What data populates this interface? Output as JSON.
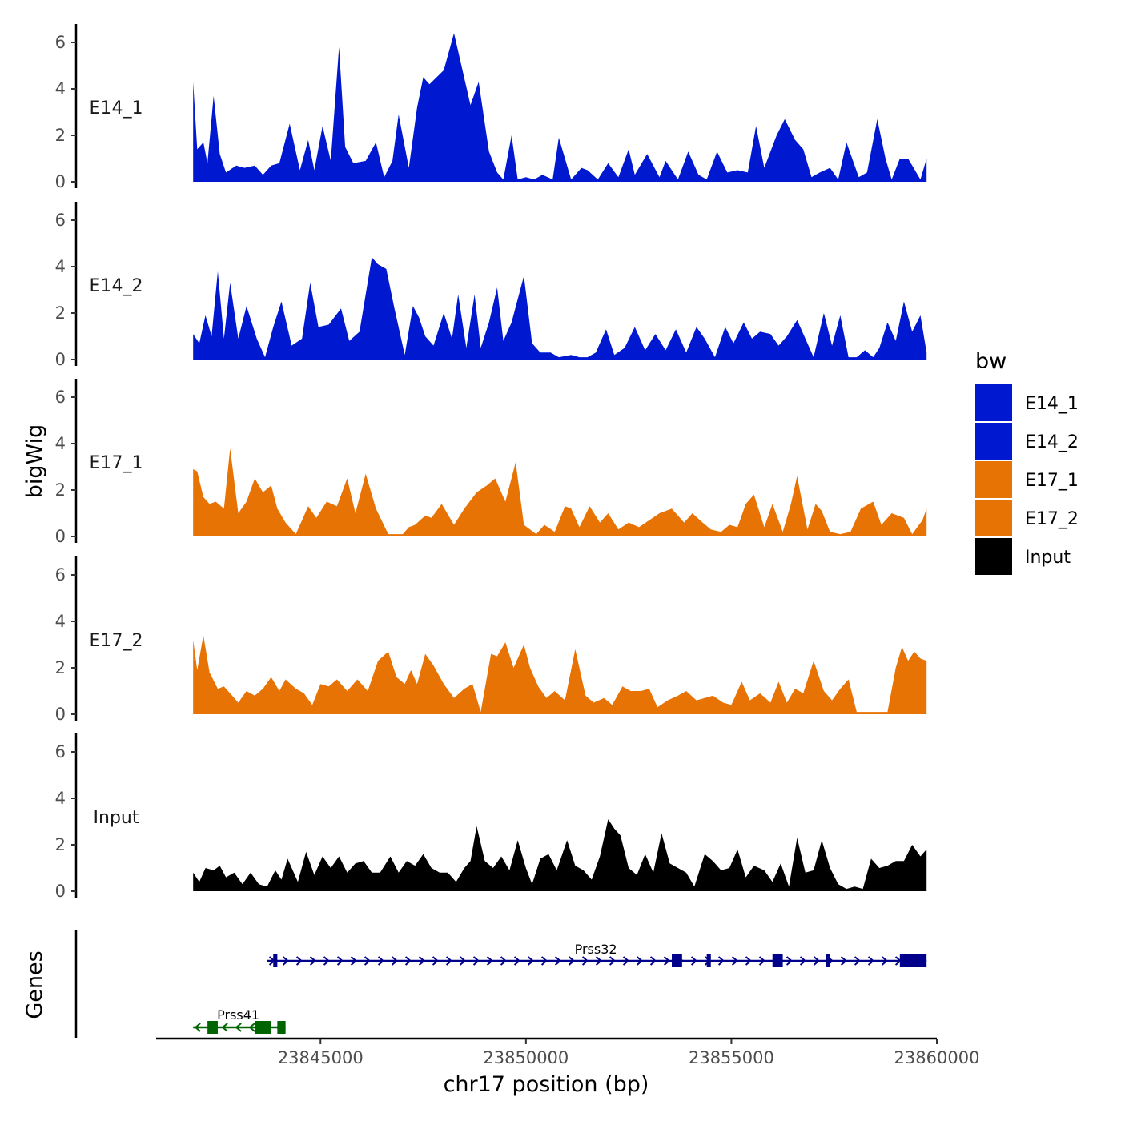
{
  "chart_data": {
    "type": "area",
    "chromosome": "chr17",
    "xlabel": "chr17 position (bp)",
    "ylabel": "bigWig",
    "genes_label": "Genes",
    "xlim": [
      23841000,
      23860000
    ],
    "ylim": [
      0,
      6.6
    ],
    "x_ticks": [
      23845000,
      23850000,
      23855000,
      23860000
    ],
    "x_tick_labels": [
      "23845000",
      "23850000",
      "23855000",
      "23860000"
    ],
    "y_ticks": [
      0,
      2,
      4,
      6
    ],
    "y_tick_labels": [
      "0",
      "2",
      "4",
      "6"
    ],
    "legend": {
      "title": "bw",
      "entries": [
        {
          "label": "E14_1",
          "color": "#0019D0"
        },
        {
          "label": "E14_2",
          "color": "#0019D0"
        },
        {
          "label": "E17_1",
          "color": "#E87305"
        },
        {
          "label": "E17_2",
          "color": "#E87305"
        },
        {
          "label": "Input",
          "color": "#000000"
        }
      ]
    },
    "series": [
      {
        "name": "E14_1",
        "color": "#0019D0",
        "x": [
          23841900,
          23842000,
          23842150,
          23842250,
          23842400,
          23842550,
          23842700,
          23842950,
          23843150,
          23843400,
          23843600,
          23843800,
          23844000,
          23844250,
          23844500,
          23844700,
          23844850,
          23845050,
          23845250,
          23845450,
          23845600,
          23845800,
          23846100,
          23846350,
          23846550,
          23846750,
          23846900,
          23847150,
          23847350,
          23847500,
          23847650,
          23848000,
          23848250,
          23848650,
          23848850,
          23849100,
          23849300,
          23849450,
          23849650,
          23849800,
          23850000,
          23850200,
          23850400,
          23850650,
          23850800,
          23851100,
          23851350,
          23851500,
          23851750,
          23852000,
          23852250,
          23852500,
          23852650,
          23852950,
          23853250,
          23853400,
          23853700,
          23853950,
          23854200,
          23854400,
          23854650,
          23854900,
          23855150,
          23855400,
          23855600,
          23855800,
          23856100,
          23856300,
          23856550,
          23856750,
          23856950,
          23857150,
          23857400,
          23857600,
          23857800,
          23858100,
          23858300,
          23858550,
          23858750,
          23858900,
          23859100,
          23859300,
          23859600,
          23859750
        ],
        "values": [
          4.3,
          1.4,
          1.7,
          0.8,
          3.7,
          1.2,
          0.4,
          0.7,
          0.6,
          0.7,
          0.3,
          0.7,
          0.8,
          2.5,
          0.5,
          1.8,
          0.5,
          2.4,
          0.9,
          5.8,
          1.5,
          0.8,
          0.9,
          1.7,
          0.2,
          0.9,
          2.9,
          0.6,
          3.2,
          4.5,
          4.2,
          4.8,
          6.4,
          3.3,
          4.3,
          1.3,
          0.4,
          0.1,
          2.0,
          0.1,
          0.2,
          0.1,
          0.3,
          0.1,
          1.9,
          0.1,
          0.6,
          0.5,
          0.1,
          0.8,
          0.2,
          1.4,
          0.3,
          1.2,
          0.2,
          0.9,
          0.1,
          1.3,
          0.3,
          0.1,
          1.3,
          0.4,
          0.5,
          0.4,
          2.4,
          0.6,
          2.0,
          2.7,
          1.8,
          1.4,
          0.2,
          0.4,
          0.6,
          0.1,
          1.7,
          0.2,
          0.4,
          2.7,
          1.0,
          0.1,
          1.0,
          1.0,
          0.1,
          1.0
        ]
      },
      {
        "name": "E14_2",
        "color": "#0019D0",
        "x": [
          23841900,
          23842050,
          23842200,
          23842350,
          23842500,
          23842650,
          23842800,
          23843000,
          23843200,
          23843450,
          23843650,
          23843850,
          23844050,
          23844300,
          23844550,
          23844750,
          23844950,
          23845200,
          23845500,
          23845700,
          23845950,
          23846100,
          23846250,
          23846400,
          23846600,
          23846800,
          23847050,
          23847250,
          23847400,
          23847550,
          23847750,
          23848000,
          23848200,
          23848350,
          23848550,
          23848750,
          23848900,
          23849100,
          23849300,
          23849450,
          23849650,
          23849950,
          23850150,
          23850350,
          23850600,
          23850800,
          23851100,
          23851300,
          23851500,
          23851700,
          23851950,
          23852150,
          23852400,
          23852650,
          23852900,
          23853150,
          23853400,
          23853650,
          23853900,
          23854150,
          23854350,
          23854600,
          23854850,
          23855050,
          23855300,
          23855500,
          23855700,
          23855950,
          23856150,
          23856350,
          23856600,
          23856800,
          23857000,
          23857250,
          23857450,
          23857650,
          23857850,
          23858050,
          23858250,
          23858450,
          23858600,
          23858800,
          23859000,
          23859200,
          23859400,
          23859600,
          23859750
        ],
        "values": [
          1.1,
          0.7,
          1.9,
          1.0,
          3.8,
          0.9,
          3.3,
          0.9,
          2.3,
          0.9,
          0.1,
          1.4,
          2.5,
          0.6,
          0.9,
          3.3,
          1.4,
          1.5,
          2.2,
          0.8,
          1.2,
          2.8,
          4.4,
          4.1,
          3.9,
          2.2,
          0.2,
          2.3,
          1.8,
          1.0,
          0.6,
          2.0,
          0.9,
          2.8,
          0.5,
          2.8,
          0.5,
          1.6,
          3.1,
          0.8,
          1.6,
          3.6,
          0.7,
          0.3,
          0.3,
          0.1,
          0.2,
          0.1,
          0.1,
          0.3,
          1.3,
          0.2,
          0.5,
          1.4,
          0.4,
          1.1,
          0.4,
          1.3,
          0.3,
          1.4,
          0.9,
          0.1,
          1.4,
          0.7,
          1.6,
          0.9,
          1.2,
          1.1,
          0.6,
          1.0,
          1.7,
          0.9,
          0.1,
          2.0,
          0.6,
          1.9,
          0.1,
          0.1,
          0.4,
          0.1,
          0.5,
          1.6,
          0.8,
          2.5,
          1.2,
          1.9,
          0.3
        ]
      },
      {
        "name": "E17_1",
        "color": "#E87305",
        "x": [
          23841900,
          23842000,
          23842150,
          23842300,
          23842450,
          23842650,
          23842800,
          23843000,
          23843200,
          23843400,
          23843600,
          23843800,
          23843950,
          23844150,
          23844400,
          23844700,
          23844900,
          23845150,
          23845400,
          23845650,
          23845850,
          23846100,
          23846350,
          23846650,
          23846850,
          23847000,
          23847150,
          23847300,
          23847550,
          23847700,
          23847950,
          23848250,
          23848500,
          23848800,
          23849050,
          23849250,
          23849500,
          23849750,
          23849950,
          23850250,
          23850450,
          23850700,
          23850950,
          23851100,
          23851300,
          23851550,
          23851800,
          23852000,
          23852250,
          23852500,
          23852750,
          23853000,
          23853250,
          23853550,
          23853850,
          23854050,
          23854300,
          23854500,
          23854750,
          23854950,
          23855150,
          23855350,
          23855550,
          23855800,
          23856000,
          23856250,
          23856450,
          23856600,
          23856850,
          23857050,
          23857200,
          23857400,
          23857650,
          23857900,
          23858150,
          23858450,
          23858650,
          23858900,
          23859200,
          23859400,
          23859650,
          23859750
        ],
        "values": [
          2.9,
          2.8,
          1.7,
          1.4,
          1.5,
          1.2,
          3.8,
          1.0,
          1.5,
          2.5,
          1.9,
          2.2,
          1.2,
          0.6,
          0.1,
          1.3,
          0.8,
          1.5,
          1.3,
          2.5,
          1.0,
          2.7,
          1.2,
          0.1,
          0.1,
          0.1,
          0.4,
          0.5,
          0.9,
          0.8,
          1.4,
          0.5,
          1.2,
          1.9,
          2.2,
          2.5,
          1.5,
          3.2,
          0.5,
          0.1,
          0.5,
          0.2,
          1.3,
          1.2,
          0.4,
          1.3,
          0.6,
          1.0,
          0.3,
          0.6,
          0.4,
          0.7,
          1.0,
          1.2,
          0.6,
          1.0,
          0.6,
          0.3,
          0.2,
          0.5,
          0.4,
          1.4,
          1.8,
          0.4,
          1.4,
          0.2,
          1.4,
          2.6,
          0.3,
          1.4,
          1.1,
          0.2,
          0.1,
          0.2,
          1.2,
          1.5,
          0.5,
          1.0,
          0.8,
          0.1,
          0.7,
          1.2
        ]
      },
      {
        "name": "E17_2",
        "color": "#E87305",
        "x": [
          23841900,
          23842000,
          23842150,
          23842300,
          23842500,
          23842650,
          23842800,
          23843000,
          23843200,
          23843400,
          23843600,
          23843800,
          23844000,
          23844150,
          23844400,
          23844600,
          23844800,
          23845000,
          23845200,
          23845400,
          23845650,
          23845900,
          23846150,
          23846400,
          23846650,
          23846850,
          23847050,
          23847200,
          23847350,
          23847550,
          23847750,
          23848000,
          23848250,
          23848500,
          23848700,
          23848900,
          23849150,
          23849300,
          23849500,
          23849700,
          23849950,
          23850100,
          23850300,
          23850500,
          23850700,
          23850950,
          23851200,
          23851450,
          23851650,
          23851900,
          23852100,
          23852350,
          23852550,
          23852800,
          23853000,
          23853200,
          23853450,
          23853700,
          23853900,
          23854150,
          23854350,
          23854550,
          23854800,
          23855000,
          23855250,
          23855450,
          23855700,
          23855950,
          23856150,
          23856350,
          23856550,
          23856750,
          23857000,
          23857250,
          23857450,
          23857650,
          23857850,
          23858050,
          23858350,
          23858600,
          23858800,
          23859000,
          23859150,
          23859300,
          23859450,
          23859600,
          23859750
        ],
        "values": [
          3.2,
          1.9,
          3.4,
          1.8,
          1.1,
          1.2,
          0.9,
          0.5,
          1.0,
          0.8,
          1.1,
          1.6,
          1.0,
          1.5,
          1.1,
          0.9,
          0.4,
          1.3,
          1.2,
          1.5,
          1.0,
          1.5,
          1.0,
          2.3,
          2.7,
          1.6,
          1.3,
          1.9,
          1.3,
          2.6,
          2.1,
          1.3,
          0.7,
          1.1,
          1.3,
          0.1,
          2.6,
          2.5,
          3.1,
          2.0,
          3.0,
          2.0,
          1.2,
          0.7,
          1.0,
          0.6,
          2.8,
          0.8,
          0.5,
          0.7,
          0.4,
          1.2,
          1.0,
          1.0,
          1.1,
          0.3,
          0.6,
          0.8,
          1.0,
          0.6,
          0.7,
          0.8,
          0.5,
          0.4,
          1.4,
          0.6,
          0.9,
          0.5,
          1.4,
          0.5,
          1.1,
          0.9,
          2.3,
          1.0,
          0.6,
          1.1,
          1.5,
          0.1,
          0.1,
          0.1,
          0.1,
          2.0,
          2.9,
          2.3,
          2.7,
          2.4,
          2.3
        ]
      },
      {
        "name": "Input",
        "color": "#000000",
        "x": [
          23841900,
          23842050,
          23842200,
          23842400,
          23842550,
          23842700,
          23842900,
          23843100,
          23843300,
          23843500,
          23843700,
          23843900,
          23844050,
          23844200,
          23844450,
          23844650,
          23844850,
          23845050,
          23845250,
          23845450,
          23845650,
          23845850,
          23846050,
          23846250,
          23846450,
          23846700,
          23846900,
          23847100,
          23847300,
          23847500,
          23847700,
          23847900,
          23848100,
          23848300,
          23848500,
          23848650,
          23848800,
          23849000,
          23849200,
          23849400,
          23849600,
          23849800,
          23850000,
          23850150,
          23850350,
          23850550,
          23850750,
          23851000,
          23851200,
          23851400,
          23851600,
          23851800,
          23852000,
          23852150,
          23852300,
          23852500,
          23852700,
          23852900,
          23853100,
          23853300,
          23853500,
          23853700,
          23853900,
          23854100,
          23854350,
          23854550,
          23854750,
          23854950,
          23855150,
          23855350,
          23855550,
          23855800,
          23856000,
          23856200,
          23856400,
          23856600,
          23856800,
          23857000,
          23857200,
          23857400,
          23857600,
          23857800,
          23858000,
          23858200,
          23858400,
          23858600,
          23858800,
          23859000,
          23859200,
          23859400,
          23859600,
          23859750
        ],
        "values": [
          0.8,
          0.4,
          1.0,
          0.9,
          1.1,
          0.6,
          0.8,
          0.3,
          0.8,
          0.3,
          0.2,
          0.9,
          0.5,
          1.4,
          0.4,
          1.7,
          0.7,
          1.5,
          1.0,
          1.5,
          0.8,
          1.2,
          1.3,
          0.8,
          0.8,
          1.5,
          0.8,
          1.3,
          1.1,
          1.6,
          1.0,
          0.8,
          0.8,
          0.4,
          1.0,
          1.3,
          2.8,
          1.3,
          1.0,
          1.5,
          0.9,
          2.2,
          1.0,
          0.3,
          1.4,
          1.6,
          0.9,
          2.2,
          1.1,
          0.9,
          0.5,
          1.5,
          3.1,
          2.7,
          2.4,
          1.0,
          0.7,
          1.6,
          0.8,
          2.5,
          1.2,
          1.0,
          0.8,
          0.2,
          1.6,
          1.3,
          0.9,
          1.0,
          1.8,
          0.6,
          1.1,
          0.9,
          0.4,
          1.2,
          0.2,
          2.3,
          0.8,
          0.9,
          2.2,
          1.0,
          0.3,
          0.1,
          0.2,
          0.1,
          1.4,
          1.0,
          1.1,
          1.3,
          1.3,
          2.0,
          1.5,
          1.8
        ]
      }
    ],
    "genes": [
      {
        "name": "Prss32",
        "strand": "+",
        "color": "#00008B",
        "start": 23843700,
        "end": 23859750,
        "exons": [
          [
            23843850,
            23843950
          ],
          [
            23853550,
            23853800
          ],
          [
            23854400,
            23854500
          ],
          [
            23856000,
            23856250
          ],
          [
            23857300,
            23857400
          ],
          [
            23859100,
            23859750
          ]
        ]
      },
      {
        "name": "Prss41",
        "strand": "-",
        "color": "#006400",
        "start": 23841900,
        "end": 23844150,
        "exons": [
          [
            23842250,
            23842500
          ],
          [
            23843400,
            23843800
          ],
          [
            23843950,
            23844150
          ]
        ]
      }
    ]
  }
}
